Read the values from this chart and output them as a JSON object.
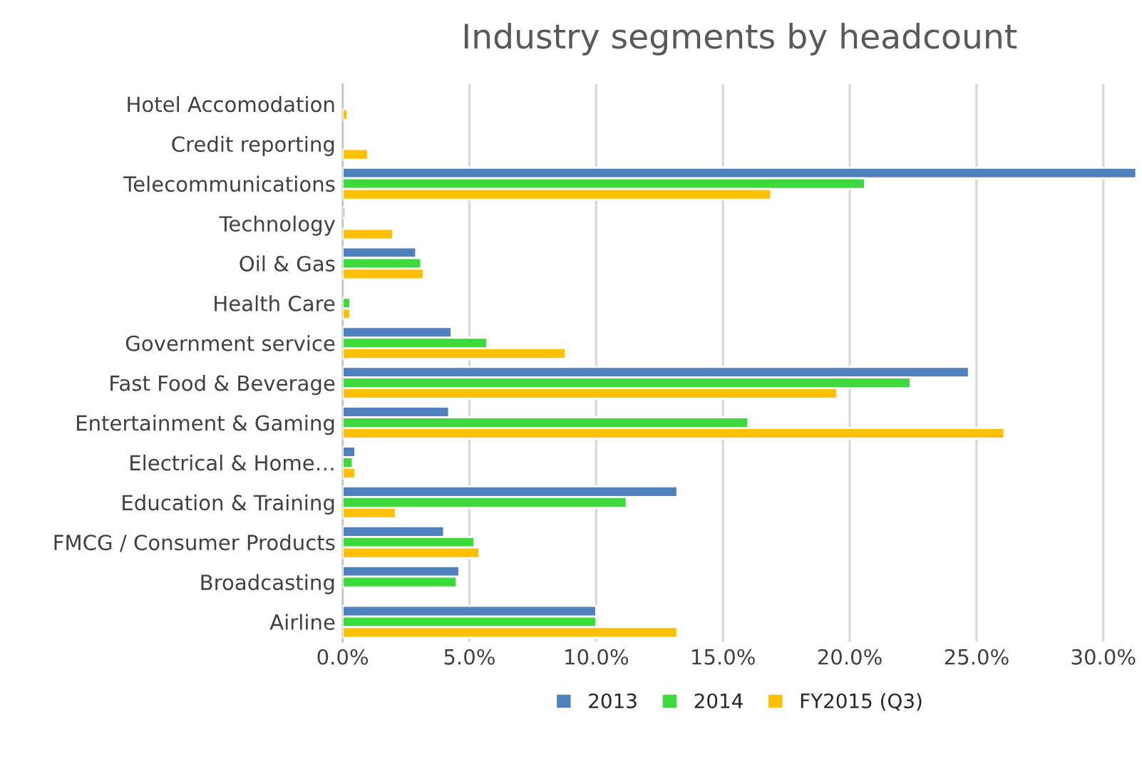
{
  "chart_data": {
    "type": "bar",
    "orientation": "horizontal",
    "title": "Industry segments by headcount",
    "categories": [
      "Hotel Accomodation",
      "Credit reporting",
      "Telecommunications",
      "Technology",
      "Oil & Gas",
      "Health Care",
      "Government service",
      "Fast Food & Beverage",
      "Entertainment & Gaming",
      "Electrical & Home…",
      "Education & Training",
      "FMCG / Consumer Products",
      "Broadcasting",
      "Airline"
    ],
    "series": [
      {
        "name": "2013",
        "color": "#4f81bd",
        "values": [
          null,
          null,
          31.3,
          0.1,
          2.9,
          null,
          4.3,
          24.7,
          4.2,
          0.5,
          13.2,
          4.0,
          4.6,
          10.0
        ]
      },
      {
        "name": "2014",
        "color": "#3adb3a",
        "values": [
          null,
          null,
          20.6,
          null,
          3.1,
          0.3,
          5.7,
          22.4,
          16.0,
          0.4,
          11.2,
          5.2,
          4.5,
          10.0
        ]
      },
      {
        "name": "FY2015 (Q3)",
        "color": "#ffc000",
        "values": [
          0.2,
          1.0,
          16.9,
          2.0,
          3.2,
          0.3,
          8.8,
          19.5,
          26.1,
          0.5,
          2.1,
          5.4,
          null,
          13.2
        ]
      }
    ],
    "xlim": [
      0,
      31.3
    ],
    "xticks": [
      {
        "value": 0,
        "label": "0.0%"
      },
      {
        "value": 5,
        "label": "5.0%"
      },
      {
        "value": 10,
        "label": "10.0%"
      },
      {
        "value": 15,
        "label": "15.0%"
      },
      {
        "value": 20,
        "label": "20.0%"
      },
      {
        "value": 25,
        "label": "25.0%"
      },
      {
        "value": 30,
        "label": "30.0%"
      }
    ],
    "grid": "x",
    "legend": "bottom"
  }
}
